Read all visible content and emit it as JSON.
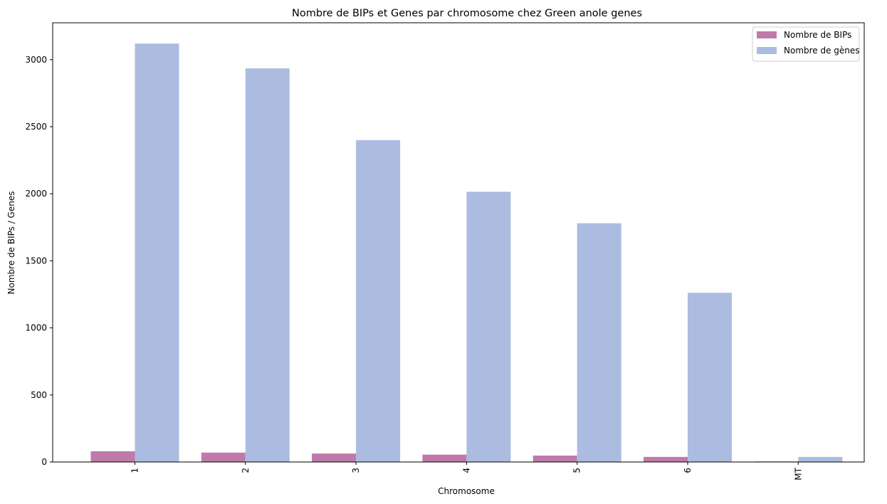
{
  "chart_data": {
    "type": "bar",
    "title": "Nombre de BIPs et Genes par chromosome chez Green anole genes",
    "xlabel": "Chromosome",
    "ylabel": "Nombre de BIPs / Genes",
    "categories": [
      "1",
      "2",
      "3",
      "4",
      "5",
      "6",
      "MT"
    ],
    "series": [
      {
        "name": "Nombre de BIPs",
        "color": "#bf7aa9",
        "values": [
          80,
          70,
          63,
          55,
          48,
          38,
          4
        ]
      },
      {
        "name": "Nombre de gènes",
        "color": "#abbce0",
        "values": [
          3120,
          2935,
          2400,
          2015,
          1780,
          1262,
          38
        ]
      }
    ],
    "yticks": [
      0,
      500,
      1000,
      1500,
      2000,
      2500,
      3000
    ],
    "ylim": [
      0,
      3275
    ],
    "legend_position": "top-right",
    "grid": false
  }
}
